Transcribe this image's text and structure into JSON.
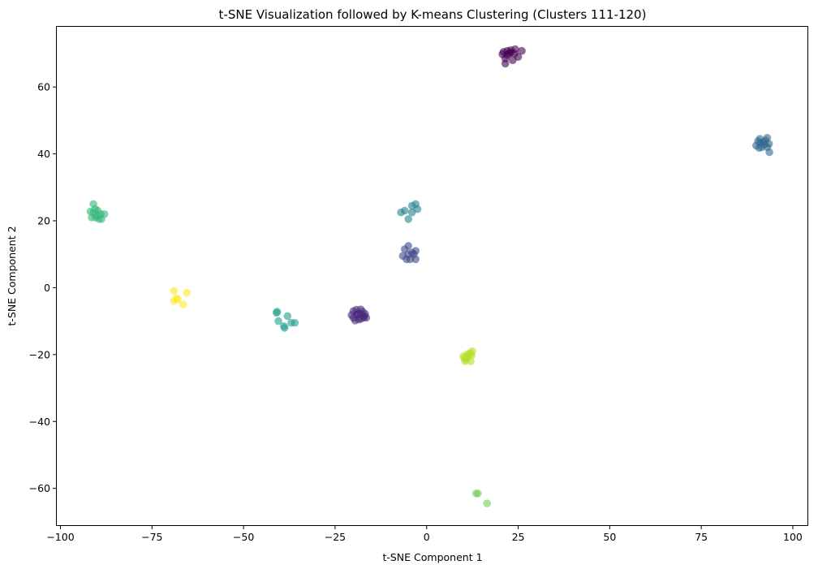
{
  "chart_data": {
    "type": "scatter",
    "title": "t-SNE Visualization followed by K-means Clustering (Clusters 111-120)",
    "xlabel": "t-SNE Component 1",
    "ylabel": "t-SNE Component 2",
    "xlim": [
      -101,
      104
    ],
    "ylim": [
      -71,
      78
    ],
    "xticks": [
      -100,
      -75,
      -50,
      -25,
      0,
      25,
      50,
      75,
      100
    ],
    "xtick_labels": [
      "−100",
      "−75",
      "−50",
      "−25",
      "0",
      "25",
      "50",
      "75",
      "100"
    ],
    "yticks": [
      -60,
      -40,
      -20,
      0,
      20,
      40,
      60
    ],
    "ytick_labels": [
      "−60",
      "−40",
      "−20",
      "0",
      "20",
      "40",
      "60"
    ],
    "grid": false,
    "colormap": "viridis",
    "clusters": [
      {
        "color": "#440154",
        "points": [
          [
            21,
            70.5
          ],
          [
            22,
            69.5
          ],
          [
            23,
            71
          ],
          [
            24,
            70
          ],
          [
            21.5,
            68.5
          ],
          [
            23.5,
            68
          ],
          [
            25,
            69
          ],
          [
            26,
            70.8
          ],
          [
            22.5,
            70
          ],
          [
            21.5,
            67
          ],
          [
            23,
            70.3
          ],
          [
            24.2,
            71.3
          ],
          [
            22,
            70.8
          ],
          [
            20.7,
            69.8
          ]
        ]
      },
      {
        "color": "#482878",
        "points": [
          [
            -20,
            -7
          ],
          [
            -19,
            -8
          ],
          [
            -18,
            -6.5
          ],
          [
            -17,
            -8.5
          ],
          [
            -16.5,
            -9
          ],
          [
            -18.5,
            -9.5
          ],
          [
            -19.5,
            -9.8
          ],
          [
            -17.5,
            -7.2
          ],
          [
            -20.5,
            -8.2
          ],
          [
            -18,
            -8
          ],
          [
            -16.8,
            -7.8
          ],
          [
            -19.2,
            -6.6
          ],
          [
            -17.9,
            -9.3
          ],
          [
            -18.8,
            -7.7
          ],
          [
            -20,
            -9
          ],
          [
            -17.2,
            -8.9
          ]
        ]
      },
      {
        "color": "#3e4989",
        "points": [
          [
            -6,
            11.5
          ],
          [
            -5,
            12.5
          ],
          [
            -4,
            10.5
          ],
          [
            -3,
            11
          ],
          [
            -6.5,
            9.5
          ],
          [
            -5.5,
            8.5
          ],
          [
            -3,
            8.5
          ],
          [
            -4.5,
            8.5
          ],
          [
            -3.5,
            10
          ],
          [
            -5,
            10
          ]
        ]
      },
      {
        "color": "#31688e",
        "points": [
          [
            90,
            42.5
          ],
          [
            91,
            44.5
          ],
          [
            92,
            43.5
          ],
          [
            93,
            42
          ],
          [
            91.5,
            42
          ],
          [
            92.5,
            44
          ],
          [
            93.5,
            43
          ],
          [
            90.8,
            41.8
          ],
          [
            93.6,
            40.5
          ],
          [
            92.2,
            42.8
          ],
          [
            91.2,
            43.3
          ],
          [
            93,
            44.8
          ],
          [
            90.5,
            43.8
          ]
        ]
      },
      {
        "color": "#26828e",
        "points": [
          [
            -7,
            22.5
          ],
          [
            -6,
            23
          ],
          [
            -4,
            22.5
          ],
          [
            -3,
            25
          ],
          [
            -2.5,
            23.5
          ],
          [
            -4,
            24.5
          ],
          [
            -5,
            20.5
          ]
        ]
      },
      {
        "color": "#1f9e89",
        "points": [
          [
            -41,
            -7.5
          ],
          [
            -40.5,
            -10
          ],
          [
            -38,
            -8.5
          ],
          [
            -37,
            -10.5
          ],
          [
            -36,
            -10.5
          ],
          [
            -39,
            -11.5
          ],
          [
            -38.8,
            -12
          ],
          [
            -40.8,
            -7.2
          ]
        ]
      },
      {
        "color": "#35b779",
        "points": [
          [
            -91,
            22.5
          ],
          [
            -90,
            21.5
          ],
          [
            -89,
            22
          ],
          [
            -91.5,
            21
          ],
          [
            -88,
            22
          ],
          [
            -90.5,
            23.5
          ],
          [
            -91,
            25
          ],
          [
            -89.5,
            20.5
          ],
          [
            -90.5,
            21
          ],
          [
            -91.8,
            22.8
          ],
          [
            -89.8,
            23
          ],
          [
            -88.8,
            20.5
          ]
        ]
      },
      {
        "color": "#6ece58",
        "points": [
          [
            13.5,
            -61.5
          ],
          [
            14,
            -61.5
          ],
          [
            16.5,
            -64.5
          ]
        ]
      },
      {
        "color": "#b5de2b",
        "points": [
          [
            10,
            -20.5
          ],
          [
            11,
            -21
          ],
          [
            12,
            -19.5
          ],
          [
            12.5,
            -19
          ],
          [
            10.5,
            -22
          ],
          [
            11.5,
            -20
          ],
          [
            12,
            -22
          ],
          [
            10.8,
            -21.5
          ],
          [
            11.2,
            -19.8
          ],
          [
            10.3,
            -21
          ],
          [
            12.3,
            -20.3
          ]
        ]
      },
      {
        "color": "#fde725",
        "points": [
          [
            -69,
            -1
          ],
          [
            -68,
            -3.5
          ],
          [
            -66.5,
            -5
          ],
          [
            -65.5,
            -1.5
          ],
          [
            -69,
            -4
          ],
          [
            -68.3,
            -3.2
          ]
        ]
      }
    ]
  }
}
